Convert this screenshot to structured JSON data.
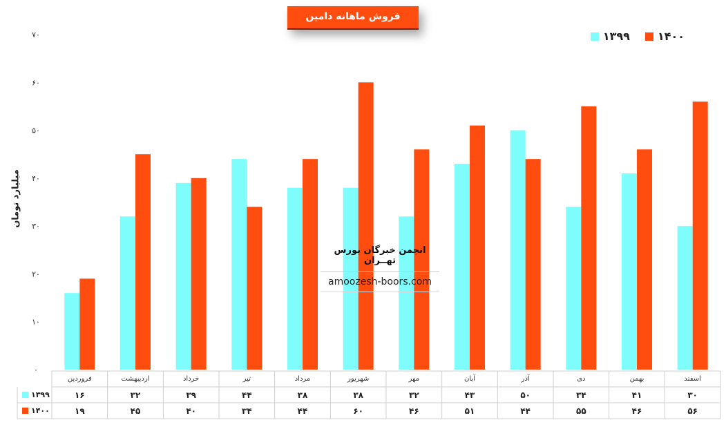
{
  "chart_data": {
    "type": "bar",
    "title": "فروش ماهانه دامین",
    "ylabel": "میلیارد تومان",
    "ylim": [
      0,
      70
    ],
    "yticks": [
      "۰",
      "۱۰",
      "۲۰",
      "۳۰",
      "۴۰",
      "۵۰",
      "۶۰",
      "۷۰"
    ],
    "categories": [
      "فروردین",
      "اردیبهشت",
      "خرداد",
      "تیر",
      "مرداد",
      "شهریور",
      "مهر",
      "آبان",
      "آذر",
      "دی",
      "بهمن",
      "اسفند"
    ],
    "series": [
      {
        "name": "۱۳۹۹",
        "color": "#7ffdfd",
        "values": [
          16,
          32,
          39,
          44,
          38,
          38,
          32,
          43,
          50,
          34,
          41,
          30
        ],
        "labels": [
          "۱۶",
          "۳۲",
          "۳۹",
          "۴۴",
          "۳۸",
          "۳۸",
          "۳۲",
          "۴۳",
          "۵۰",
          "۳۴",
          "۴۱",
          "۳۰"
        ]
      },
      {
        "name": "۱۴۰۰",
        "color": "#fe4d0f",
        "values": [
          19,
          45,
          40,
          34,
          44,
          60,
          46,
          51,
          44,
          55,
          46,
          56
        ],
        "labels": [
          "۱۹",
          "۴۵",
          "۴۰",
          "۳۴",
          "۴۴",
          "۶۰",
          "۴۶",
          "۵۱",
          "۴۴",
          "۵۵",
          "۴۶",
          "۵۶"
        ]
      }
    ],
    "legend_position": "top-right",
    "grid": false
  },
  "watermark": {
    "line1": "انجمن خبرگان بورس تهــران",
    "line2": "amoozesh-boors.com"
  }
}
